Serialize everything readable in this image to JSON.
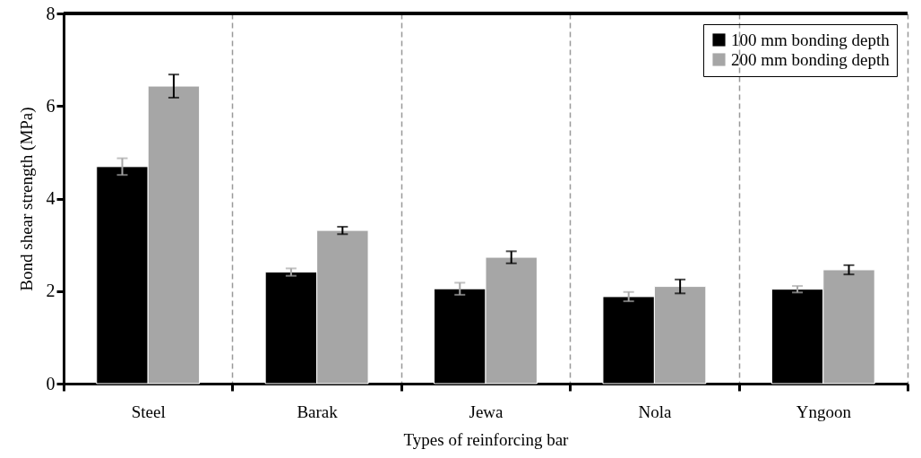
{
  "chart_data": {
    "type": "bar",
    "xlabel": "Types of reinforcing bar",
    "ylabel": "Bond shear strength (MPa)",
    "categories": [
      "Steel",
      "Barak",
      "Jewa",
      "Nola",
      "Yngoon"
    ],
    "series": [
      {
        "name": "100 mm bonding depth",
        "color": "#000000",
        "values": [
          4.69,
          2.41,
          2.05,
          1.88,
          2.04
        ],
        "errors": [
          0.18,
          0.08,
          0.13,
          0.1,
          0.07
        ]
      },
      {
        "name": "200 mm bonding depth",
        "color": "#a6a6a6",
        "values": [
          6.43,
          3.31,
          2.73,
          2.1,
          2.46
        ],
        "errors": [
          0.25,
          0.08,
          0.13,
          0.15,
          0.1
        ]
      }
    ],
    "ylim": [
      0,
      8
    ],
    "yticks": [
      0,
      2,
      4,
      6,
      8
    ],
    "grid": "x",
    "legend": "top right"
  }
}
